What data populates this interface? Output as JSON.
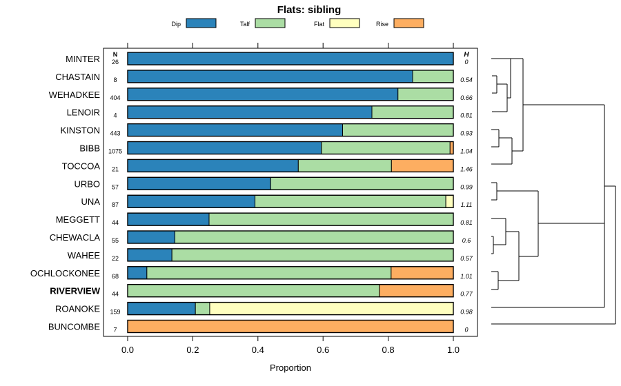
{
  "chart_data": {
    "type": "bar",
    "stacked": true,
    "orientation": "horizontal",
    "title": "Flats: sibling",
    "xlabel": "Proportion",
    "xlim": [
      0,
      1
    ],
    "x_ticks": [
      "0.0",
      "0.2",
      "0.4",
      "0.6",
      "0.8",
      "1.0"
    ],
    "n_header": "N",
    "h_header": "H",
    "legend": [
      {
        "name": "Dip",
        "color": "#2b83ba"
      },
      {
        "name": "Talf",
        "color": "#abdda4"
      },
      {
        "name": "Flat",
        "color": "#ffffbf"
      },
      {
        "name": "Rise",
        "color": "#fdae61"
      }
    ],
    "rows": [
      {
        "label": "MINTER",
        "bold": false,
        "n": "26",
        "h": "0",
        "values": [
          1.0,
          0,
          0,
          0
        ]
      },
      {
        "label": "CHASTAIN",
        "bold": false,
        "n": "8",
        "h": "0.54",
        "values": [
          0.875,
          0.125,
          0,
          0
        ]
      },
      {
        "label": "WEHADKEE",
        "bold": false,
        "n": "404",
        "h": "0.66",
        "values": [
          0.83,
          0.17,
          0,
          0
        ]
      },
      {
        "label": "LENOIR",
        "bold": false,
        "n": "4",
        "h": "0.81",
        "values": [
          0.75,
          0.25,
          0,
          0
        ]
      },
      {
        "label": "KINSTON",
        "bold": false,
        "n": "443",
        "h": "0.93",
        "values": [
          0.66,
          0.34,
          0,
          0
        ]
      },
      {
        "label": "BIBB",
        "bold": false,
        "n": "1075",
        "h": "1.04",
        "values": [
          0.595,
          0.395,
          0,
          0.01
        ]
      },
      {
        "label": "TOCCOA",
        "bold": false,
        "n": "21",
        "h": "1.46",
        "values": [
          0.524,
          0.286,
          0,
          0.19
        ]
      },
      {
        "label": "URBO",
        "bold": false,
        "n": "57",
        "h": "0.99",
        "values": [
          0.439,
          0.561,
          0,
          0
        ]
      },
      {
        "label": "UNA",
        "bold": false,
        "n": "87",
        "h": "1.11",
        "values": [
          0.391,
          0.586,
          0.023,
          0
        ]
      },
      {
        "label": "MEGGETT",
        "bold": false,
        "n": "44",
        "h": "0.81",
        "values": [
          0.25,
          0.75,
          0,
          0
        ]
      },
      {
        "label": "CHEWACLA",
        "bold": false,
        "n": "55",
        "h": "0.6",
        "values": [
          0.145,
          0.855,
          0,
          0
        ]
      },
      {
        "label": "WAHEE",
        "bold": false,
        "n": "22",
        "h": "0.57",
        "values": [
          0.136,
          0.864,
          0,
          0
        ]
      },
      {
        "label": "OCHLOCKONEE",
        "bold": false,
        "n": "68",
        "h": "1.01",
        "values": [
          0.059,
          0.75,
          0,
          0.191
        ]
      },
      {
        "label": "RIVERVIEW",
        "bold": true,
        "n": "44",
        "h": "0.77",
        "values": [
          0,
          0.773,
          0,
          0.227
        ]
      },
      {
        "label": "ROANOKE",
        "bold": false,
        "n": "159",
        "h": "0.98",
        "values": [
          0.208,
          0.044,
          0.748,
          0
        ]
      },
      {
        "label": "BUNCOMBE",
        "bold": false,
        "n": "7",
        "h": "0",
        "values": [
          0,
          0,
          0,
          1.0
        ]
      }
    ]
  }
}
